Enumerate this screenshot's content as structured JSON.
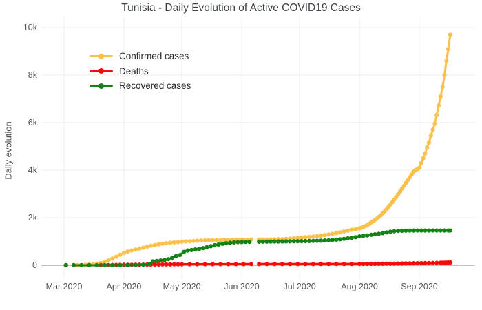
{
  "title": "Tunisia - Daily Evolution of Active COVID19 Cases",
  "y_axis": {
    "label": "Daily evolution",
    "ticks": [
      "0",
      "2k",
      "4k",
      "6k",
      "8k",
      "10k"
    ],
    "tick_values": [
      0,
      2000,
      4000,
      6000,
      8000,
      10000
    ]
  },
  "x_axis": {
    "ticks": [
      "Mar 2020",
      "Apr 2020",
      "May 2020",
      "Jun 2020",
      "Jul 2020",
      "Aug 2020",
      "Sep 2020"
    ],
    "tick_dates": [
      "2020-03-01",
      "2020-04-01",
      "2020-05-01",
      "2020-06-01",
      "2020-07-01",
      "2020-08-01",
      "2020-09-01"
    ]
  },
  "legend": {
    "items": [
      {
        "label": "Confirmed cases",
        "color": "#fcc14c"
      },
      {
        "label": "Deaths",
        "color": "#f40b0b"
      },
      {
        "label": "Recovered cases",
        "color": "#148214"
      }
    ]
  },
  "colors": {
    "gridline": "#f0f0f0",
    "zeroline": "#b0b0b0",
    "background": "#ffffff"
  },
  "chart_data": {
    "type": "line",
    "title": "Tunisia - Daily Evolution of Active COVID19 Cases",
    "xlabel": "",
    "ylabel": "Daily evolution",
    "ylim": [
      0,
      10000
    ],
    "xlim": [
      "2020-02-18",
      "2020-09-30"
    ],
    "grid": true,
    "legend_position": "top-left",
    "markers": true,
    "series": [
      {
        "name": "Confirmed cases",
        "color": "#fcc14c",
        "x": [
          "2020-03-02",
          "2020-03-04",
          "2020-03-06",
          "2020-03-08",
          "2020-03-10",
          "2020-03-12",
          "2020-03-14",
          "2020-03-16",
          "2020-03-18",
          "2020-03-20",
          "2020-03-22",
          "2020-03-24",
          "2020-03-26",
          "2020-03-28",
          "2020-03-30",
          "2020-04-01",
          "2020-04-03",
          "2020-04-05",
          "2020-04-07",
          "2020-04-09",
          "2020-04-11",
          "2020-04-13",
          "2020-04-15",
          "2020-04-17",
          "2020-04-19",
          "2020-04-21",
          "2020-04-23",
          "2020-04-25",
          "2020-04-27",
          "2020-04-29",
          "2020-05-01",
          "2020-05-03",
          "2020-05-05",
          "2020-05-07",
          "2020-05-09",
          "2020-05-11",
          "2020-05-13",
          "2020-05-15",
          "2020-05-17",
          "2020-05-19",
          "2020-05-21",
          "2020-05-23",
          "2020-05-25",
          "2020-05-27",
          "2020-05-29",
          "2020-05-31",
          "2020-06-02",
          "2020-06-04",
          "2020-06-06",
          "2020-06-08",
          "2020-06-10",
          "2020-06-12",
          "2020-06-14",
          "2020-06-16",
          "2020-06-18",
          "2020-06-20",
          "2020-06-22",
          "2020-06-24",
          "2020-06-26",
          "2020-06-28",
          "2020-06-30",
          "2020-07-02",
          "2020-07-04",
          "2020-07-06",
          "2020-07-08",
          "2020-07-10",
          "2020-07-12",
          "2020-07-14",
          "2020-07-16",
          "2020-07-18",
          "2020-07-20",
          "2020-07-22",
          "2020-07-24",
          "2020-07-26",
          "2020-07-28",
          "2020-07-30",
          "2020-08-01",
          "2020-08-02",
          "2020-08-03",
          "2020-08-04",
          "2020-08-05",
          "2020-08-06",
          "2020-08-07",
          "2020-08-08",
          "2020-08-09",
          "2020-08-10",
          "2020-08-11",
          "2020-08-12",
          "2020-08-13",
          "2020-08-14",
          "2020-08-15",
          "2020-08-16",
          "2020-08-17",
          "2020-08-18",
          "2020-08-19",
          "2020-08-20",
          "2020-08-21",
          "2020-08-22",
          "2020-08-23",
          "2020-08-24",
          "2020-08-25",
          "2020-08-26",
          "2020-08-27",
          "2020-08-28",
          "2020-08-29",
          "2020-08-30",
          "2020-08-31",
          "2020-09-01",
          "2020-09-02",
          "2020-09-03",
          "2020-09-04",
          "2020-09-05",
          "2020-09-06",
          "2020-09-07",
          "2020-09-08",
          "2020-09-09",
          "2020-09-10",
          "2020-09-11",
          "2020-09-12",
          "2020-09-13",
          "2020-09-14",
          "2020-09-15",
          "2020-09-16",
          "2020-09-17"
        ],
        "y": [
          1,
          null,
          2,
          3,
          7,
          15,
          25,
          40,
          60,
          90,
          140,
          200,
          280,
          360,
          440,
          520,
          580,
          620,
          660,
          700,
          740,
          780,
          820,
          850,
          880,
          905,
          925,
          945,
          960,
          975,
          990,
          1000,
          1010,
          1020,
          1030,
          1038,
          1044,
          1048,
          1052,
          1056,
          1060,
          1063,
          1066,
          1068,
          1070,
          1072,
          1075,
          1077,
          1078,
          null,
          1080,
          1082,
          1084,
          1086,
          1090,
          1095,
          1100,
          1110,
          1120,
          1130,
          1145,
          1160,
          1175,
          1190,
          1205,
          1225,
          1245,
          1270,
          1295,
          1320,
          1350,
          1385,
          1420,
          1455,
          1490,
          1520,
          1550,
          1580,
          1615,
          1650,
          1690,
          1740,
          1795,
          1850,
          1905,
          1960,
          2030,
          2100,
          2180,
          2260,
          2350,
          2450,
          2550,
          2650,
          2760,
          2870,
          2990,
          3100,
          3220,
          3340,
          3460,
          3580,
          3700,
          3820,
          3940,
          4000,
          4050,
          4100,
          4300,
          4500,
          4700,
          4950,
          5160,
          5450,
          5700,
          5950,
          6320,
          6720,
          7100,
          7500,
          8000,
          8600,
          9100,
          9700
        ]
      },
      {
        "name": "Deaths",
        "color": "#f40b0b",
        "x": [
          "2020-03-02",
          "2020-03-04",
          "2020-03-06",
          "2020-03-10",
          "2020-03-14",
          "2020-03-18",
          "2020-03-20",
          "2020-03-22",
          "2020-03-24",
          "2020-03-26",
          "2020-03-28",
          "2020-03-30",
          "2020-04-01",
          "2020-04-03",
          "2020-04-05",
          "2020-04-07",
          "2020-04-09",
          "2020-04-11",
          "2020-04-13",
          "2020-04-15",
          "2020-04-17",
          "2020-04-19",
          "2020-04-21",
          "2020-04-23",
          "2020-04-25",
          "2020-04-27",
          "2020-04-29",
          "2020-05-01",
          "2020-05-05",
          "2020-05-09",
          "2020-05-13",
          "2020-05-17",
          "2020-05-21",
          "2020-05-25",
          "2020-05-29",
          "2020-06-02",
          "2020-06-06",
          "2020-06-08",
          "2020-06-10",
          "2020-06-14",
          "2020-06-18",
          "2020-06-22",
          "2020-06-26",
          "2020-06-30",
          "2020-07-04",
          "2020-07-08",
          "2020-07-12",
          "2020-07-16",
          "2020-07-20",
          "2020-07-24",
          "2020-07-28",
          "2020-08-01",
          "2020-08-03",
          "2020-08-05",
          "2020-08-07",
          "2020-08-09",
          "2020-08-11",
          "2020-08-13",
          "2020-08-15",
          "2020-08-17",
          "2020-08-19",
          "2020-08-21",
          "2020-08-23",
          "2020-08-25",
          "2020-08-27",
          "2020-08-29",
          "2020-08-31",
          "2020-09-02",
          "2020-09-04",
          "2020-09-06",
          "2020-09-08",
          "2020-09-10",
          "2020-09-11",
          "2020-09-12",
          "2020-09-13",
          "2020-09-14",
          "2020-09-15",
          "2020-09-16",
          "2020-09-17"
        ],
        "y": [
          0,
          null,
          0,
          0,
          0,
          1,
          3,
          6,
          8,
          10,
          12,
          14,
          16,
          18,
          20,
          22,
          24,
          25,
          27,
          29,
          31,
          33,
          34,
          35,
          36,
          37,
          38,
          40,
          41,
          42,
          43,
          44,
          45,
          45,
          46,
          47,
          48,
          null,
          48,
          49,
          49,
          50,
          50,
          50,
          50,
          50,
          51,
          51,
          52,
          53,
          54,
          55,
          56,
          57,
          58,
          59,
          60,
          62,
          64,
          66,
          68,
          70,
          73,
          76,
          79,
          82,
          85,
          88,
          91,
          94,
          97,
          100,
          null,
          104,
          106,
          108,
          110,
          112,
          115
        ]
      },
      {
        "name": "Recovered cases",
        "color": "#148214",
        "x": [
          "2020-03-02",
          "2020-03-04",
          "2020-03-06",
          "2020-03-10",
          "2020-03-14",
          "2020-03-18",
          "2020-03-22",
          "2020-03-26",
          "2020-03-30",
          "2020-04-03",
          "2020-04-07",
          "2020-04-11",
          "2020-04-14",
          "2020-04-16",
          "2020-04-18",
          "2020-04-20",
          "2020-04-22",
          "2020-04-24",
          "2020-04-26",
          "2020-04-28",
          "2020-04-30",
          "2020-05-02",
          "2020-05-04",
          "2020-05-06",
          "2020-05-08",
          "2020-05-10",
          "2020-05-12",
          "2020-05-14",
          "2020-05-16",
          "2020-05-18",
          "2020-05-20",
          "2020-05-22",
          "2020-05-24",
          "2020-05-26",
          "2020-05-28",
          "2020-05-30",
          "2020-06-01",
          "2020-06-03",
          "2020-06-05",
          "2020-06-08",
          "2020-06-10",
          "2020-06-12",
          "2020-06-14",
          "2020-06-16",
          "2020-06-18",
          "2020-06-20",
          "2020-06-22",
          "2020-06-24",
          "2020-06-26",
          "2020-06-28",
          "2020-06-30",
          "2020-07-02",
          "2020-07-04",
          "2020-07-06",
          "2020-07-08",
          "2020-07-10",
          "2020-07-12",
          "2020-07-14",
          "2020-07-16",
          "2020-07-18",
          "2020-07-20",
          "2020-07-22",
          "2020-07-24",
          "2020-07-26",
          "2020-07-28",
          "2020-07-30",
          "2020-08-01",
          "2020-08-03",
          "2020-08-05",
          "2020-08-07",
          "2020-08-09",
          "2020-08-11",
          "2020-08-13",
          "2020-08-15",
          "2020-08-17",
          "2020-08-19",
          "2020-08-21",
          "2020-08-23",
          "2020-08-25",
          "2020-08-27",
          "2020-08-29",
          "2020-08-31",
          "2020-09-02",
          "2020-09-04",
          "2020-09-06",
          "2020-09-08",
          "2020-09-10",
          "2020-09-11",
          "2020-09-12",
          "2020-09-14",
          "2020-09-16",
          "2020-09-17"
        ],
        "y": [
          0,
          null,
          0,
          0,
          0,
          1,
          2,
          2,
          3,
          4,
          5,
          20,
          40,
          160,
          180,
          200,
          215,
          255,
          310,
          385,
          430,
          560,
          620,
          640,
          665,
          690,
          720,
          760,
          800,
          840,
          870,
          900,
          925,
          945,
          960,
          970,
          975,
          980,
          984,
          null,
          988,
          990,
          992,
          994,
          996,
          998,
          1000,
          1002,
          1004,
          1006,
          1008,
          1012,
          1015,
          1018,
          1022,
          1027,
          1033,
          1040,
          1050,
          1062,
          1076,
          1092,
          1110,
          1132,
          1155,
          1180,
          1215,
          1235,
          1255,
          1278,
          1300,
          1322,
          1350,
          1380,
          1408,
          1430,
          1445,
          1452,
          1456,
          1458,
          1460,
          1460,
          1460,
          1460,
          1460,
          1460,
          1460,
          null,
          1460,
          1460,
          1460,
          1460
        ]
      }
    ]
  }
}
